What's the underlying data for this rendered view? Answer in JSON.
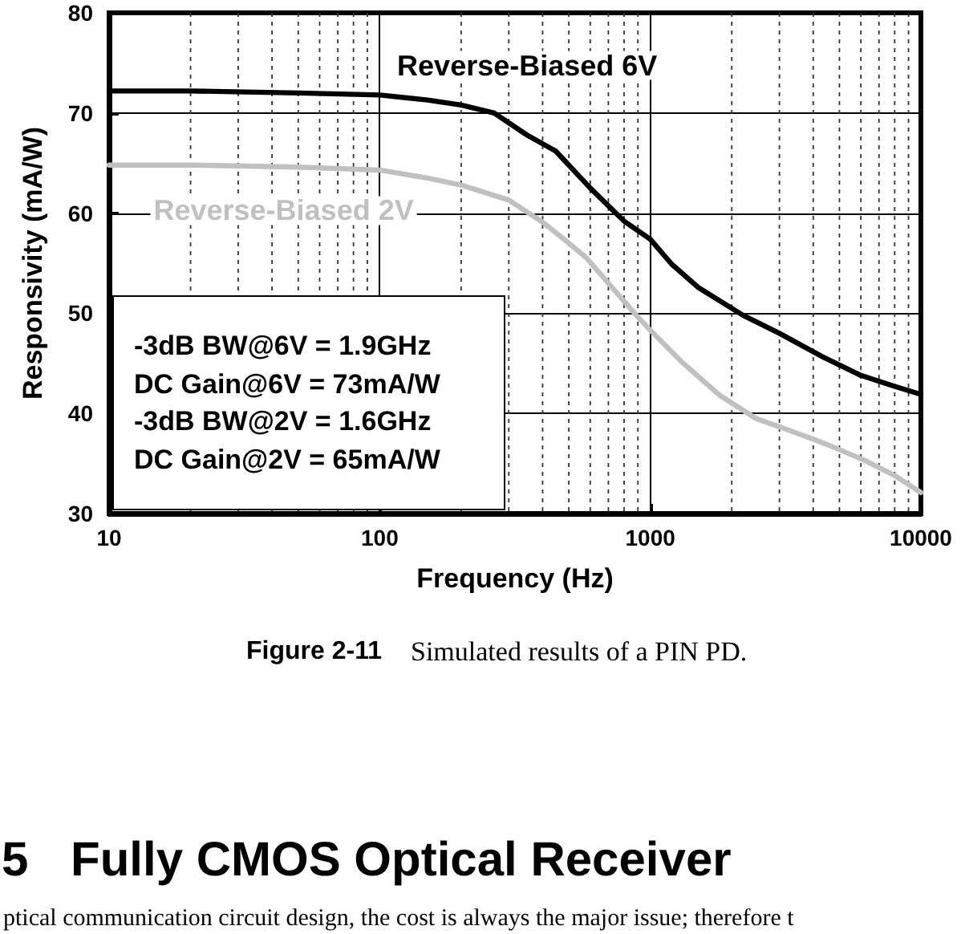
{
  "chart_data": {
    "type": "line",
    "xlabel": "Frequency (Hz)",
    "ylabel": "Responsivity (mA/W)",
    "series": [
      {
        "name": "Reverse-Biased 6V",
        "color": "#000000",
        "x": [
          10,
          20,
          50,
          100,
          150,
          200,
          265,
          350,
          447,
          600,
          800,
          1000,
          1200,
          1500,
          2200,
          3000,
          4300,
          6000,
          8000,
          10000
        ],
        "values": [
          72.2,
          72.2,
          72.0,
          71.8,
          71.3,
          70.8,
          70.0,
          67.8,
          66.2,
          62.5,
          59.2,
          57.4,
          54.9,
          52.6,
          49.8,
          48.0,
          45.7,
          43.8,
          42.7,
          41.9
        ]
      },
      {
        "name": "Reverse-Biased 2V",
        "color": "#c0c0c0",
        "x": [
          10,
          20,
          50,
          100,
          150,
          200,
          300,
          400,
          500,
          577,
          700,
          875,
          1000,
          1300,
          1807,
          2455,
          3350,
          4500,
          6210,
          8000,
          10000
        ],
        "values": [
          64.8,
          64.8,
          64.6,
          64.3,
          63.5,
          62.8,
          61.3,
          59.1,
          57.0,
          55.6,
          53.0,
          50.0,
          48.3,
          45.2,
          41.8,
          39.5,
          38.2,
          36.9,
          35.3,
          33.8,
          32.1
        ]
      }
    ],
    "log": "x",
    "xlim": [
      10,
      10000
    ],
    "xticks": [
      10,
      {
        "value": 20,
        "label": null
      },
      {
        "value": 30,
        "label": null
      },
      {
        "value": 40,
        "label": null
      },
      {
        "value": 50,
        "label": null
      },
      {
        "value": 60,
        "label": null
      },
      {
        "value": 70,
        "label": null
      },
      {
        "value": 80,
        "label": null
      },
      {
        "value": 90,
        "label": null
      },
      100,
      {
        "value": 200,
        "label": null
      },
      {
        "value": 300,
        "label": null
      },
      {
        "value": 400,
        "label": null
      },
      {
        "value": 500,
        "label": null
      },
      {
        "value": 600,
        "label": null
      },
      {
        "value": 700,
        "label": null
      },
      {
        "value": 800,
        "label": null
      },
      {
        "value": 900,
        "label": null
      },
      1000,
      {
        "value": 2000,
        "label": null
      },
      {
        "value": 3000,
        "label": null
      },
      {
        "value": 4000,
        "label": null
      },
      {
        "value": 5000,
        "label": null
      },
      {
        "value": 6000,
        "label": null
      },
      {
        "value": 7000,
        "label": null
      },
      {
        "value": 8000,
        "label": null
      },
      {
        "value": 9000,
        "label": null
      },
      10000
    ],
    "ylim": [
      30,
      80
    ],
    "yticks": [
      30,
      40,
      50,
      60,
      70,
      80
    ],
    "grid": true,
    "annotations": [
      "-3dB BW@6V = 1.9GHz",
      "DC Gain@6V = 73mA/W",
      "-3dB BW@2V = 1.6GHz",
      "DC Gain@2V = 65mA/W",
      "Figure 2-11",
      "Simulated results of a PIN PD.",
      "5",
      "Fully CMOS Optical Receiver",
      "ptical communication circuit design, the cost is always the major issue; therefore t"
    ]
  }
}
